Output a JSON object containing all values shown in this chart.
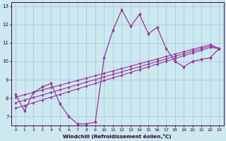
{
  "xlabel": "Windchill (Refroidissement éolien,°C)",
  "x_data": [
    0,
    1,
    2,
    3,
    4,
    5,
    6,
    7,
    8,
    9,
    10,
    11,
    12,
    13,
    14,
    15,
    16,
    17,
    18,
    19,
    20,
    21,
    22,
    23
  ],
  "y_main": [
    8.2,
    7.3,
    8.3,
    8.6,
    8.8,
    7.7,
    7.0,
    6.6,
    6.6,
    6.7,
    10.2,
    11.7,
    12.8,
    11.9,
    12.55,
    11.5,
    11.85,
    10.7,
    10.0,
    9.7,
    10.0,
    10.1,
    10.2,
    10.7
  ],
  "y_upper": [
    8.05,
    8.18,
    8.31,
    8.44,
    8.57,
    8.7,
    8.83,
    8.96,
    9.09,
    9.22,
    9.35,
    9.48,
    9.61,
    9.74,
    9.87,
    10.0,
    10.13,
    10.26,
    10.39,
    10.52,
    10.65,
    10.78,
    10.91,
    10.7
  ],
  "y_mid": [
    7.75,
    7.89,
    8.03,
    8.17,
    8.31,
    8.45,
    8.59,
    8.73,
    8.87,
    9.01,
    9.15,
    9.29,
    9.43,
    9.57,
    9.71,
    9.85,
    9.99,
    10.13,
    10.27,
    10.41,
    10.55,
    10.69,
    10.83,
    10.7
  ],
  "y_lower": [
    7.45,
    7.6,
    7.75,
    7.9,
    8.05,
    8.2,
    8.35,
    8.5,
    8.65,
    8.8,
    8.95,
    9.1,
    9.25,
    9.4,
    9.55,
    9.7,
    9.85,
    10.0,
    10.15,
    10.3,
    10.45,
    10.6,
    10.75,
    10.7
  ],
  "line_color": "#993399",
  "bg_color": "#cce8f0",
  "grid_color": "#aaccdd",
  "ylim": [
    6.5,
    13.2
  ],
  "xlim": [
    -0.5,
    23.5
  ],
  "yticks": [
    7,
    8,
    9,
    10,
    11,
    12,
    13
  ],
  "xticks": [
    0,
    1,
    2,
    3,
    4,
    5,
    6,
    7,
    8,
    9,
    10,
    11,
    12,
    13,
    14,
    15,
    16,
    17,
    18,
    19,
    20,
    21,
    22,
    23
  ]
}
